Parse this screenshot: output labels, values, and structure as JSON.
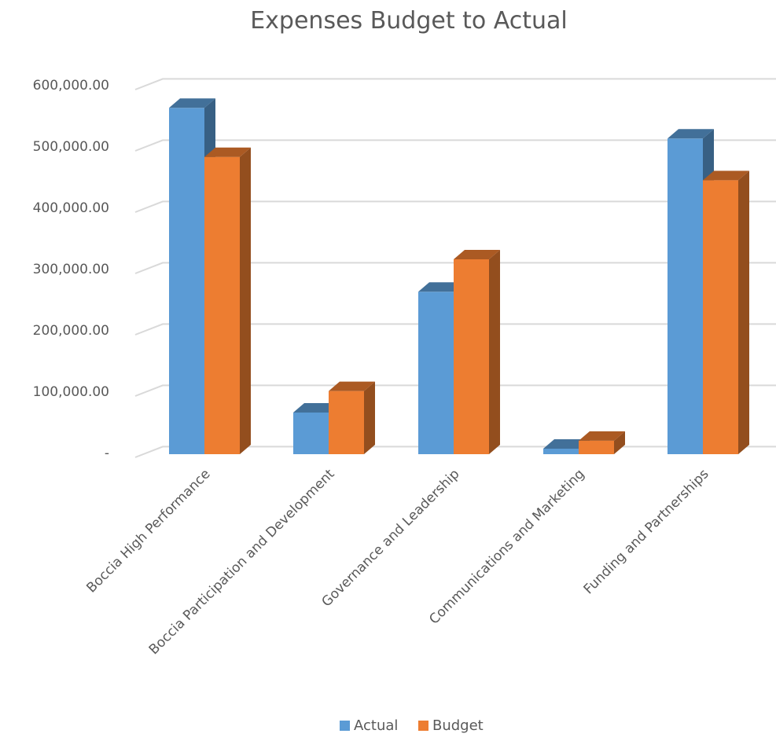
{
  "chart_data": {
    "type": "bar",
    "title": "Expenses Budget to Actual",
    "categories": [
      "Boccia High Performance",
      "Boccia Participation and Development",
      "Governance and Leadership",
      "Communications and Marketing",
      "Funding and Partnerships"
    ],
    "series": [
      {
        "name": "Actual",
        "color": "#5B9BD5",
        "values": [
          565000,
          68000,
          265000,
          9000,
          515000
        ]
      },
      {
        "name": "Budget",
        "color": "#ED7D31",
        "values": [
          485000,
          103000,
          318000,
          22000,
          447000
        ]
      }
    ],
    "y_ticks": [
      0,
      100000,
      200000,
      300000,
      400000,
      500000,
      600000
    ],
    "y_tick_labels": [
      "-",
      "100,000.00",
      "200,000.00",
      "300,000.00",
      "400,000.00",
      "500,000.00",
      "600,000.00"
    ],
    "ylim": [
      0,
      600000
    ],
    "xlabel": "",
    "ylabel": "",
    "grid": true,
    "legend_position": "bottom",
    "style": "3d-clustered-column"
  }
}
